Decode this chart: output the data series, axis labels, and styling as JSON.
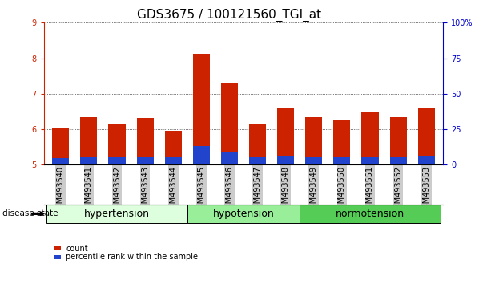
{
  "title": "GDS3675 / 100121560_TGI_at",
  "samples": [
    "GSM493540",
    "GSM493541",
    "GSM493542",
    "GSM493543",
    "GSM493544",
    "GSM493545",
    "GSM493546",
    "GSM493547",
    "GSM493548",
    "GSM493549",
    "GSM493550",
    "GSM493551",
    "GSM493552",
    "GSM493553"
  ],
  "count_values": [
    6.05,
    6.35,
    6.15,
    6.32,
    5.95,
    8.12,
    7.32,
    6.15,
    6.58,
    6.35,
    6.28,
    6.48,
    6.35,
    6.62
  ],
  "percentile_values": [
    5.18,
    5.22,
    5.2,
    5.22,
    5.2,
    5.52,
    5.37,
    5.22,
    5.25,
    5.2,
    5.2,
    5.2,
    5.2,
    5.25
  ],
  "base_value": 5.0,
  "ylim_left": [
    5.0,
    9.0
  ],
  "ylim_right": [
    0,
    100
  ],
  "yticks_left": [
    5,
    6,
    7,
    8,
    9
  ],
  "yticks_right": [
    0,
    25,
    50,
    75,
    100
  ],
  "bar_color": "#cc2200",
  "percentile_color": "#2244cc",
  "bar_width": 0.6,
  "groups": [
    {
      "label": "hypertension",
      "start": 0,
      "end": 5
    },
    {
      "label": "hypotension",
      "start": 5,
      "end": 9
    },
    {
      "label": "normotension",
      "start": 9,
      "end": 14
    }
  ],
  "group_colors": [
    "#ddffdd",
    "#99ee99",
    "#55cc55"
  ],
  "disease_state_label": "disease state",
  "legend_items": [
    {
      "label": "count",
      "color": "#cc2200"
    },
    {
      "label": "percentile rank within the sample",
      "color": "#2244cc"
    }
  ],
  "title_fontsize": 11,
  "tick_fontsize": 7,
  "group_label_fontsize": 9,
  "axis_color_left": "#cc2200",
  "axis_color_right": "#0000cc",
  "bg_color": "#ffffff",
  "plot_bg_color": "#ffffff",
  "tick_bg_color": "#cccccc"
}
